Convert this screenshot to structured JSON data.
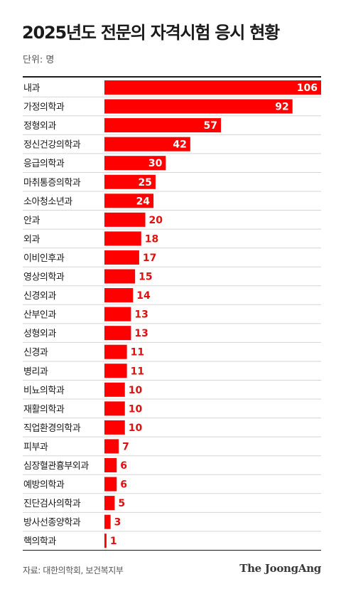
{
  "header": {
    "title": "2025년도 전문의 자격시험 응시 현황",
    "unit": "단위: 명"
  },
  "footer": {
    "source": "자료: 대한의학회, 보건복지부",
    "logo": "The JoongAng"
  },
  "colors": {
    "bar": "#ff0000",
    "label_on_bar": "#ffffff",
    "label_outside": "#e01010"
  },
  "chart_data": {
    "type": "bar",
    "orientation": "horizontal",
    "categories": [
      "내과",
      "가정의학과",
      "정형외과",
      "정신건강의학과",
      "응급의학과",
      "마취통증의학과",
      "소아청소년과",
      "안과",
      "외과",
      "이비인후과",
      "영상의학과",
      "신경외과",
      "산부인과",
      "성형외과",
      "신경과",
      "병리과",
      "비뇨의학과",
      "재활의학과",
      "직업환경의학과",
      "피부과",
      "심장혈관흉부외과",
      "예방의학과",
      "진단검사의학과",
      "방사선종양학과",
      "핵의학과"
    ],
    "values": [
      106,
      92,
      57,
      42,
      30,
      25,
      24,
      20,
      18,
      17,
      15,
      14,
      13,
      13,
      11,
      11,
      10,
      10,
      10,
      7,
      6,
      6,
      5,
      3,
      1
    ],
    "xlim": [
      0,
      106
    ],
    "grid": false,
    "legend": "none"
  }
}
